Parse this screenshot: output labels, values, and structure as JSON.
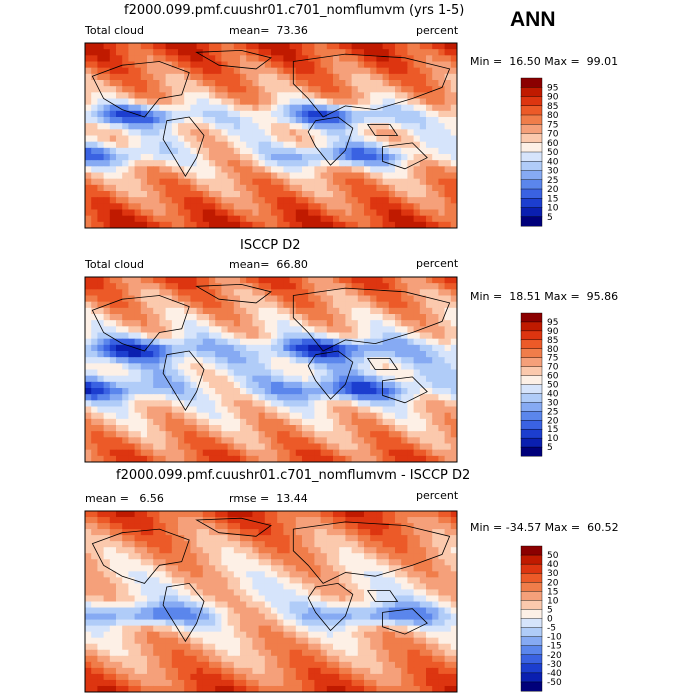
{
  "season": "ANN",
  "chart_data": [
    {
      "type": "heatmap",
      "title": "f2000.099.pmf.cuushr01.c701_nomflumvm (yrs 1-5)",
      "left_label": "Total cloud",
      "center_label": "mean=  73.36",
      "units": "percent",
      "min_max": "Min =  16.50 Max =  99.01",
      "mean": 73.36,
      "min": 16.5,
      "max": 99.01,
      "colorbar_levels": [
        "95",
        "90",
        "85",
        "80",
        "75",
        "70",
        "60",
        "50",
        "40",
        "30",
        "25",
        "20",
        "15",
        "10",
        "5"
      ],
      "colorbar_colors": [
        "#8b0000",
        "#c01a00",
        "#dd3510",
        "#ec5a28",
        "#f07d4a",
        "#f5a07a",
        "#fbc9ad",
        "#fdf0e6",
        "#d6e4fb",
        "#b0ccf8",
        "#86aaf3",
        "#5b86ec",
        "#3a62e2",
        "#1c3ecf",
        "#0a1fb0",
        "#00007a"
      ]
    },
    {
      "type": "heatmap",
      "title": "ISCCP D2",
      "left_label": "Total cloud",
      "center_label": "mean=  66.80",
      "units": "percent",
      "min_max": "Min =  18.51 Max =  95.86",
      "mean": 66.8,
      "min": 18.51,
      "max": 95.86,
      "colorbar_levels": [
        "95",
        "90",
        "85",
        "80",
        "75",
        "70",
        "60",
        "50",
        "40",
        "30",
        "25",
        "20",
        "15",
        "10",
        "5"
      ],
      "colorbar_colors": [
        "#8b0000",
        "#c01a00",
        "#dd3510",
        "#ec5a28",
        "#f07d4a",
        "#f5a07a",
        "#fbc9ad",
        "#fdf0e6",
        "#d6e4fb",
        "#b0ccf8",
        "#86aaf3",
        "#5b86ec",
        "#3a62e2",
        "#1c3ecf",
        "#0a1fb0",
        "#00007a"
      ]
    },
    {
      "type": "heatmap",
      "title": "f2000.099.pmf.cuushr01.c701_nomflumvm - ISCCP D2",
      "left_label": "mean =   6.56",
      "center_label": "rmse =  13.44",
      "units": "percent",
      "min_max": "Min = -34.57 Max =  60.52",
      "mean": 6.56,
      "rmse": 13.44,
      "min": -34.57,
      "max": 60.52,
      "colorbar_levels": [
        "50",
        "40",
        "30",
        "20",
        "15",
        "10",
        "5",
        "0",
        "-5",
        "-10",
        "-15",
        "-20",
        "-30",
        "-40",
        "-50"
      ],
      "colorbar_colors": [
        "#8b0000",
        "#c01a00",
        "#dd3510",
        "#ec5a28",
        "#f07d4a",
        "#f5a07a",
        "#fbc9ad",
        "#fdf0e6",
        "#d6e4fb",
        "#b0ccf8",
        "#86aaf3",
        "#5b86ec",
        "#3a62e2",
        "#1c3ecf",
        "#0a1fb0",
        "#00007a"
      ]
    }
  ]
}
